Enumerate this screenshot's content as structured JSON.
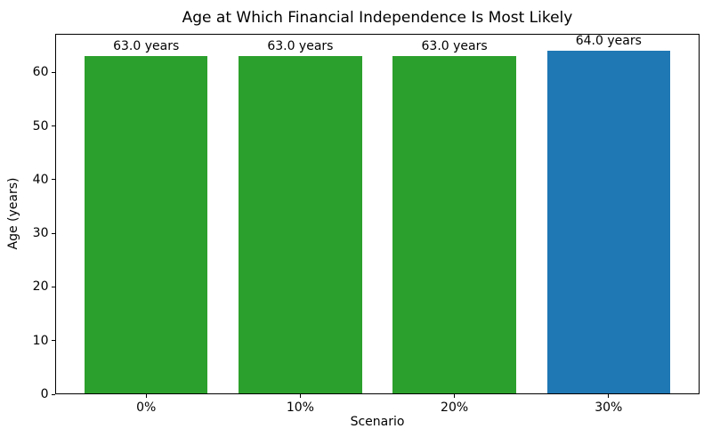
{
  "chart_data": {
    "type": "bar",
    "title": "Age at Which Financial Independence Is Most Likely",
    "xlabel": "Scenario",
    "ylabel": "Age (years)",
    "categories": [
      "0%",
      "10%",
      "20%",
      "30%"
    ],
    "values": [
      63.0,
      63.0,
      63.0,
      64.0
    ],
    "bar_labels": [
      "63.0 years",
      "63.0 years",
      "63.0 years",
      "64.0 years"
    ],
    "bar_colors": [
      "#2ca02c",
      "#2ca02c",
      "#2ca02c",
      "#1f77b4"
    ],
    "yticks": [
      0,
      10,
      20,
      30,
      40,
      50,
      60
    ],
    "ytick_labels": [
      "0",
      "10",
      "20",
      "30",
      "40",
      "50",
      "60"
    ],
    "ylim": [
      0,
      67.2
    ],
    "grid": false,
    "legend": null,
    "background_color": "#ffffff",
    "frame_color": "#000000"
  }
}
